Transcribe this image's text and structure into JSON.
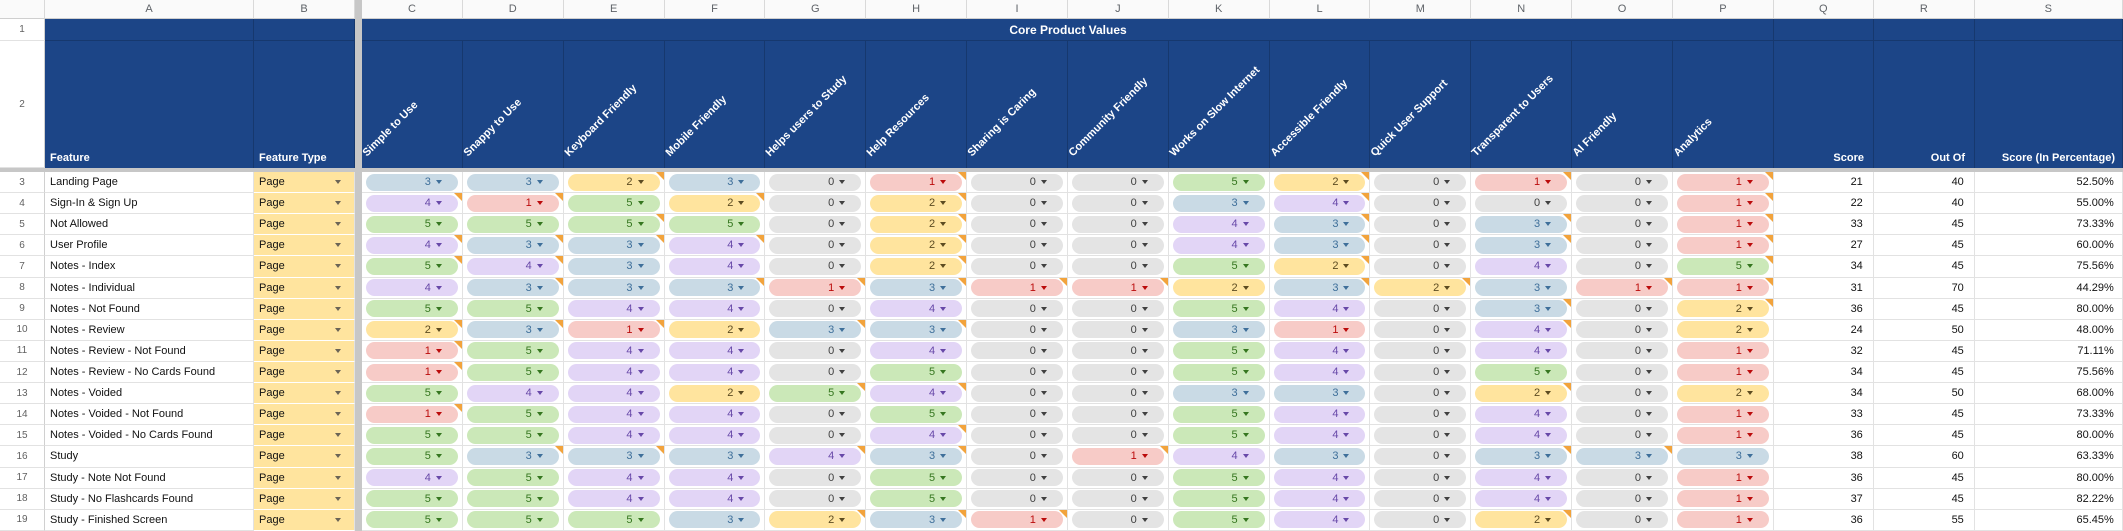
{
  "sheet": {
    "title": "Core Product Values",
    "column_letters": [
      "A",
      "B",
      "C",
      "D",
      "E",
      "F",
      "G",
      "H",
      "I",
      "J",
      "K",
      "L",
      "M",
      "N",
      "O",
      "P",
      "Q",
      "R",
      "S"
    ],
    "header_row_numbers": [
      "1",
      "2"
    ],
    "corner_labels": {
      "feature": "Feature",
      "feature_type": "Feature Type",
      "score": "Score",
      "out_of": "Out Of",
      "pct": "Score (In Percentage)"
    },
    "criteria": [
      "Simple to Use",
      "Snappy to Use",
      "Keyboard Friendly",
      "Mobile Friendly",
      "Helps users to Study",
      "Help Resources",
      "Sharing is Caring",
      "Community Friendly",
      "Works on Slow Internet",
      "Accessible Friendly",
      "Quick User Support",
      "Transparent to Users",
      "AI Friendly",
      "Analytics"
    ],
    "colors": {
      "header_navy": "#1c4587",
      "note_indicator": "#f2a33c",
      "feature_type_chip_bg": "#ffe49e"
    },
    "rating_styles": {
      "0": {
        "bg": "#e4e4e4",
        "fg": "#404040"
      },
      "1": {
        "bg": "#f7cbc7",
        "fg": "#bb0b0b"
      },
      "2": {
        "bg": "#ffe49e",
        "fg": "#5c4b21"
      },
      "3": {
        "bg": "#c9dae5",
        "fg": "#3e6f9a"
      },
      "4": {
        "bg": "#e2d5f6",
        "fg": "#6748a8"
      },
      "5": {
        "bg": "#cbe8b8",
        "fg": "#35761f"
      }
    },
    "rows": [
      {
        "num": 3,
        "feature": "Landing Page",
        "type": "Page",
        "values": [
          3,
          3,
          2,
          3,
          0,
          1,
          0,
          0,
          5,
          2,
          0,
          1,
          0,
          1
        ],
        "notes": [
          2,
          5,
          9,
          11,
          13
        ],
        "score": 21,
        "out_of": 40,
        "pct": "52.50%"
      },
      {
        "num": 4,
        "feature": "Sign-In & Sign Up",
        "type": "Page",
        "values": [
          4,
          1,
          5,
          2,
          0,
          2,
          0,
          0,
          3,
          4,
          0,
          0,
          0,
          1
        ],
        "notes": [
          0,
          1,
          3,
          5,
          9,
          13
        ],
        "score": 22,
        "out_of": 40,
        "pct": "55.00%"
      },
      {
        "num": 5,
        "feature": "Not Allowed",
        "type": "Page",
        "values": [
          5,
          5,
          5,
          5,
          0,
          2,
          0,
          0,
          4,
          3,
          0,
          3,
          0,
          1
        ],
        "notes": [
          2,
          5,
          9,
          11,
          13
        ],
        "score": 33,
        "out_of": 45,
        "pct": "73.33%"
      },
      {
        "num": 6,
        "feature": "User Profile",
        "type": "Page",
        "values": [
          4,
          3,
          3,
          4,
          0,
          2,
          0,
          0,
          4,
          3,
          0,
          3,
          0,
          1
        ],
        "notes": [
          0,
          1,
          2,
          3,
          5,
          9,
          11,
          13
        ],
        "score": 27,
        "out_of": 45,
        "pct": "60.00%"
      },
      {
        "num": 7,
        "feature": "Notes - Index",
        "type": "Page",
        "values": [
          5,
          4,
          3,
          4,
          0,
          2,
          0,
          0,
          5,
          2,
          0,
          4,
          0,
          5
        ],
        "notes": [
          0,
          1,
          5,
          9,
          13
        ],
        "score": 34,
        "out_of": 45,
        "pct": "75.56%"
      },
      {
        "num": 8,
        "feature": "Notes - Individual",
        "type": "Page",
        "values": [
          4,
          3,
          3,
          3,
          1,
          3,
          1,
          1,
          2,
          3,
          2,
          3,
          1,
          1
        ],
        "notes": [
          1,
          3,
          4,
          5,
          6,
          7,
          9,
          10,
          12,
          13
        ],
        "score": 31,
        "out_of": 70,
        "pct": "44.29%"
      },
      {
        "num": 9,
        "feature": "Notes - Not Found",
        "type": "Page",
        "values": [
          5,
          5,
          4,
          4,
          0,
          4,
          0,
          0,
          5,
          4,
          0,
          3,
          0,
          2
        ],
        "notes": [
          11,
          13
        ],
        "score": 36,
        "out_of": 45,
        "pct": "80.00%"
      },
      {
        "num": 10,
        "feature": "Notes - Review",
        "type": "Page",
        "values": [
          2,
          3,
          1,
          2,
          3,
          3,
          0,
          0,
          3,
          1,
          0,
          4,
          0,
          2
        ],
        "notes": [
          0,
          1,
          2,
          4,
          5,
          11
        ],
        "score": 24,
        "out_of": 50,
        "pct": "48.00%"
      },
      {
        "num": 11,
        "feature": "Notes - Review - Not Found",
        "type": "Page",
        "values": [
          1,
          5,
          4,
          4,
          0,
          4,
          0,
          0,
          5,
          4,
          0,
          4,
          0,
          1
        ],
        "notes": [
          0
        ],
        "score": 32,
        "out_of": 45,
        "pct": "71.11%"
      },
      {
        "num": 12,
        "feature": "Notes - Review - No Cards Found",
        "type": "Page",
        "values": [
          1,
          5,
          4,
          4,
          0,
          5,
          0,
          0,
          5,
          4,
          0,
          5,
          0,
          1
        ],
        "notes": [
          0
        ],
        "score": 34,
        "out_of": 45,
        "pct": "75.56%"
      },
      {
        "num": 13,
        "feature": "Notes - Voided",
        "type": "Page",
        "values": [
          5,
          4,
          4,
          2,
          5,
          4,
          0,
          0,
          3,
          3,
          0,
          2,
          0,
          2
        ],
        "notes": [
          4,
          5,
          11
        ],
        "score": 34,
        "out_of": 50,
        "pct": "68.00%"
      },
      {
        "num": 14,
        "feature": "Notes - Voided - Not Found",
        "type": "Page",
        "values": [
          1,
          5,
          4,
          4,
          0,
          5,
          0,
          0,
          5,
          4,
          0,
          4,
          0,
          1
        ],
        "notes": [
          0
        ],
        "score": 33,
        "out_of": 45,
        "pct": "73.33%"
      },
      {
        "num": 15,
        "feature": "Notes - Voided - No Cards Found",
        "type": "Page",
        "values": [
          5,
          5,
          4,
          4,
          0,
          4,
          0,
          0,
          5,
          4,
          0,
          4,
          0,
          1
        ],
        "notes": [
          5
        ],
        "score": 36,
        "out_of": 45,
        "pct": "80.00%"
      },
      {
        "num": 16,
        "feature": "Study",
        "type": "Page",
        "values": [
          5,
          3,
          3,
          3,
          4,
          3,
          0,
          1,
          4,
          3,
          0,
          3,
          3,
          3
        ],
        "notes": [
          1,
          2,
          4,
          5,
          7,
          11,
          12
        ],
        "score": 38,
        "out_of": 60,
        "pct": "63.33%"
      },
      {
        "num": 17,
        "feature": "Study - Note Not Found",
        "type": "Page",
        "values": [
          4,
          5,
          4,
          4,
          0,
          5,
          0,
          0,
          5,
          4,
          0,
          4,
          0,
          1
        ],
        "notes": [],
        "score": 36,
        "out_of": 45,
        "pct": "80.00%"
      },
      {
        "num": 18,
        "feature": "Study - No Flashcards Found",
        "type": "Page",
        "values": [
          5,
          5,
          4,
          4,
          0,
          5,
          0,
          0,
          5,
          4,
          0,
          4,
          0,
          1
        ],
        "notes": [],
        "score": 37,
        "out_of": 45,
        "pct": "82.22%"
      },
      {
        "num": 19,
        "feature": "Study - Finished Screen",
        "type": "Page",
        "values": [
          5,
          5,
          5,
          3,
          2,
          3,
          1,
          0,
          5,
          4,
          0,
          2,
          0,
          1
        ],
        "notes": [
          4,
          5,
          6,
          11
        ],
        "score": 36,
        "out_of": 55,
        "pct": "65.45%"
      }
    ]
  }
}
